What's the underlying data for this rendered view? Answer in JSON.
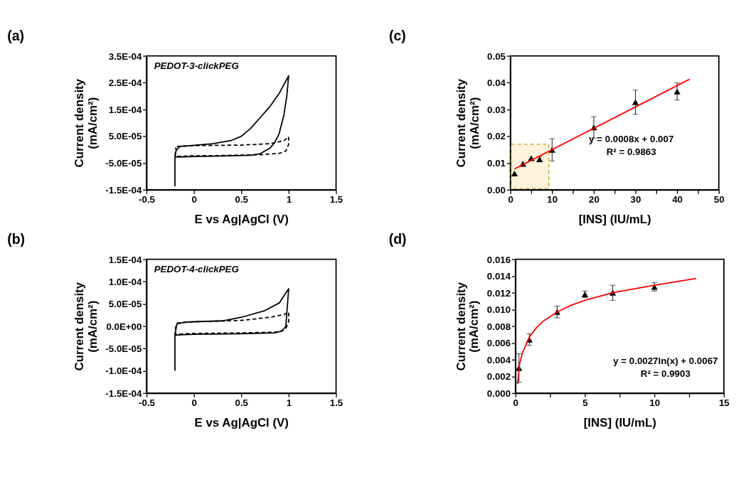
{
  "chart_data": [
    {
      "type": "line",
      "title": "(a)",
      "xlabel": "E vs Ag|AgCl (V)",
      "ylabel": "Current density (mA/cm²)",
      "xlim": [
        -0.5,
        1.5
      ],
      "xticks": [
        -0.5,
        0,
        0.5,
        1,
        1.5
      ],
      "ylim": [
        -0.00015,
        0.00035
      ],
      "yticks": [
        {
          "value": -0.00015,
          "label": "-1.5E-04"
        },
        {
          "value": -5e-05,
          "label": "-5.0E-05"
        },
        {
          "value": 5e-05,
          "label": "5.0E-05"
        },
        {
          "value": 0.00015,
          "label": "1.5E-04"
        },
        {
          "value": 0.00025,
          "label": "2.5E-04"
        },
        {
          "value": 0.00035,
          "label": "3.5E-04"
        }
      ],
      "grid": false,
      "annotations": [
        "PEDOT-3-clickPEG"
      ],
      "series": [
        {
          "type": "line",
          "line_style": "solid",
          "color": "#000000",
          "x": [
            -0.2,
            -0.2,
            -0.19,
            -0.15,
            0,
            0.2,
            0.4,
            0.5,
            0.6,
            0.7,
            0.8,
            0.9,
            1.0,
            0.98,
            0.95,
            0.9,
            0.85,
            0.8,
            0.7,
            0.6,
            0.3,
            0,
            -0.2
          ],
          "values": [
            -0.000137,
            -3e-05,
            -5e-06,
            1.2e-05,
            1.6e-05,
            2.2e-05,
            3.5e-05,
            5e-05,
            8e-05,
            0.00012,
            0.00016,
            0.00021,
            0.000276,
            0.0002,
            0.00013,
            6e-05,
            2.5e-05,
            5e-06,
            -1.5e-05,
            -2.1e-05,
            -2.4e-05,
            -2.6e-05,
            -2.8e-05
          ]
        },
        {
          "type": "line",
          "line_style": "dashed",
          "color": "#000000",
          "x": [
            -0.18,
            0,
            0.5,
            0.8,
            0.95,
            1.0,
            1.0,
            0.97,
            0.9,
            0.7,
            0.3,
            0,
            -0.2,
            -0.19
          ],
          "values": [
            1.2e-05,
            1.5e-05,
            1.7e-05,
            2.2e-05,
            3.3e-05,
            4.8e-05,
            2e-05,
            -5e-06,
            -1.4e-05,
            -1.9e-05,
            -2.2e-05,
            -2.3e-05,
            -2.5e-05,
            8e-06
          ]
        }
      ]
    },
    {
      "type": "scatter",
      "title": "(c)",
      "xlabel": "[INS]  (IU/mL)",
      "ylabel": "Current density (mA/cm²)",
      "xlim": [
        0,
        50
      ],
      "xticks": [
        0,
        {
          "value": 5,
          "label": null
        },
        10,
        {
          "value": 15,
          "label": null
        },
        20,
        {
          "value": 25,
          "label": null
        },
        30,
        {
          "value": 35,
          "label": null
        },
        40,
        {
          "value": 45,
          "label": null
        },
        50
      ],
      "ylim": [
        0,
        0.05
      ],
      "yticks": [
        {
          "value": 0,
          "label": "0.00"
        },
        0.01,
        0.02,
        0.03,
        0.04,
        0.05
      ],
      "grid": false,
      "annotations": [
        "y = 0.0008x + 0.007",
        "R² = 0.9863"
      ],
      "bands": [
        {
          "axis": "x",
          "from": 0.2,
          "to": 9.2,
          "color": "#fdf3dc"
        }
      ],
      "series": [
        {
          "type": "scatter",
          "marker": "triangle",
          "color": "#000000",
          "x": [
            1,
            3,
            5,
            7,
            10,
            20,
            30,
            40
          ],
          "values": [
            0.0061,
            0.0097,
            0.0118,
            0.0114,
            0.0149,
            0.0233,
            0.0327,
            0.0367
          ],
          "errors": [
            null,
            null,
            null,
            0.001,
            0.0042,
            0.004,
            0.0045,
            0.0032
          ]
        },
        {
          "type": "line",
          "line_style": "solid",
          "color": "#ff0000",
          "x": [
            1,
            43
          ],
          "values": [
            0.0078,
            0.0413
          ]
        }
      ]
    },
    {
      "type": "line",
      "title": "(b)",
      "xlabel": "E vs Ag|AgCl (V)",
      "ylabel": "Current density (mA/cm²)",
      "xlim": [
        -0.5,
        1.5
      ],
      "xticks": [
        -0.5,
        0,
        0.5,
        1,
        1.5
      ],
      "ylim": [
        -0.00015,
        0.00015
      ],
      "yticks": [
        {
          "value": -0.00015,
          "label": "-1.5E-04"
        },
        {
          "value": -0.0001,
          "label": "-1.0E-04"
        },
        {
          "value": -5e-05,
          "label": "-5.0E-05"
        },
        {
          "value": 0,
          "label": "0.0E+00"
        },
        {
          "value": 5e-05,
          "label": "5.0E-05"
        },
        {
          "value": 0.0001,
          "label": "1.0E-04"
        },
        {
          "value": 0.00015,
          "label": "1.5E-04"
        }
      ],
      "grid": false,
      "annotations": [
        "PEDOT-4-clickPEG"
      ],
      "series": [
        {
          "type": "line",
          "line_style": "solid",
          "color": "#000000",
          "x": [
            -0.2,
            -0.2,
            -0.18,
            -0.1,
            0,
            0.3,
            0.5,
            0.75,
            0.9,
            1.0,
            0.97,
            0.93,
            0.85,
            0.5,
            0,
            -0.2
          ],
          "values": [
            -0.0001,
            -2e-05,
            5e-06,
            9e-06,
            1e-05,
            1.2e-05,
            2e-05,
            3.5e-05,
            5.2e-05,
            8.4e-05,
            0,
            -1.1e-05,
            -1.5e-05,
            -1.7e-05,
            -1.8e-05,
            -2e-05
          ]
        },
        {
          "type": "line",
          "line_style": "dashed",
          "color": "#000000",
          "x": [
            -0.18,
            0,
            0.5,
            0.8,
            0.95,
            1.0,
            1.0,
            0.97,
            0.9,
            0.5,
            0,
            -0.2,
            -0.19
          ],
          "values": [
            7e-06,
            1e-05,
            1.3e-05,
            2e-05,
            2.6e-05,
            3.2e-05,
            1e-05,
            -5e-06,
            -1.3e-05,
            -1.5e-05,
            -1.6e-05,
            -1.8e-05,
            3e-06
          ]
        }
      ]
    },
    {
      "type": "scatter",
      "title": "(d)",
      "xlabel": "[INS]  (IU/mL)",
      "ylabel": "Current density (mA/cm²)",
      "xlim": [
        0,
        15
      ],
      "xticks": [
        0,
        {
          "value": 2.5,
          "label": null
        },
        5,
        {
          "value": 7.5,
          "label": null
        },
        10,
        {
          "value": 12.5,
          "label": null
        },
        15
      ],
      "ylim": [
        0,
        0.016
      ],
      "yticks": [
        {
          "value": 0,
          "label": "0.000"
        },
        {
          "value": 0.002,
          "label": "0.002"
        },
        {
          "value": 0.004,
          "label": "0.004"
        },
        {
          "value": 0.006,
          "label": "0.006"
        },
        {
          "value": 0.008,
          "label": "0.008"
        },
        {
          "value": 0.01,
          "label": "0.010"
        },
        {
          "value": 0.012,
          "label": "0.012"
        },
        {
          "value": 0.014,
          "label": "0.014"
        },
        {
          "value": 0.016,
          "label": "0.016"
        }
      ],
      "grid": false,
      "annotations": [
        "y = 0.0027ln(x) + 0.0067",
        "R² = 0.9903"
      ],
      "series": [
        {
          "type": "scatter",
          "marker": "triangle",
          "color": "#000000",
          "x": [
            0.25,
            1,
            3,
            5,
            7,
            10
          ],
          "values": [
            0.003,
            0.0064,
            0.0097,
            0.0118,
            0.012,
            0.0127
          ],
          "errors": [
            0.0017,
            0.0007,
            0.0007,
            0.0004,
            0.0009,
            0.0005
          ]
        },
        {
          "type": "line",
          "line_style": "solid",
          "color": "#ff0000",
          "x": [
            0.15,
            0.3,
            0.5,
            1,
            1.5,
            2,
            3,
            4,
            5,
            7,
            10,
            13
          ],
          "values": [
            0.0011,
            0.0035,
            0.0048,
            0.0067,
            0.0078,
            0.0086,
            0.0097,
            0.0105,
            0.0111,
            0.012,
            0.0129,
            0.0137
          ]
        }
      ]
    }
  ]
}
